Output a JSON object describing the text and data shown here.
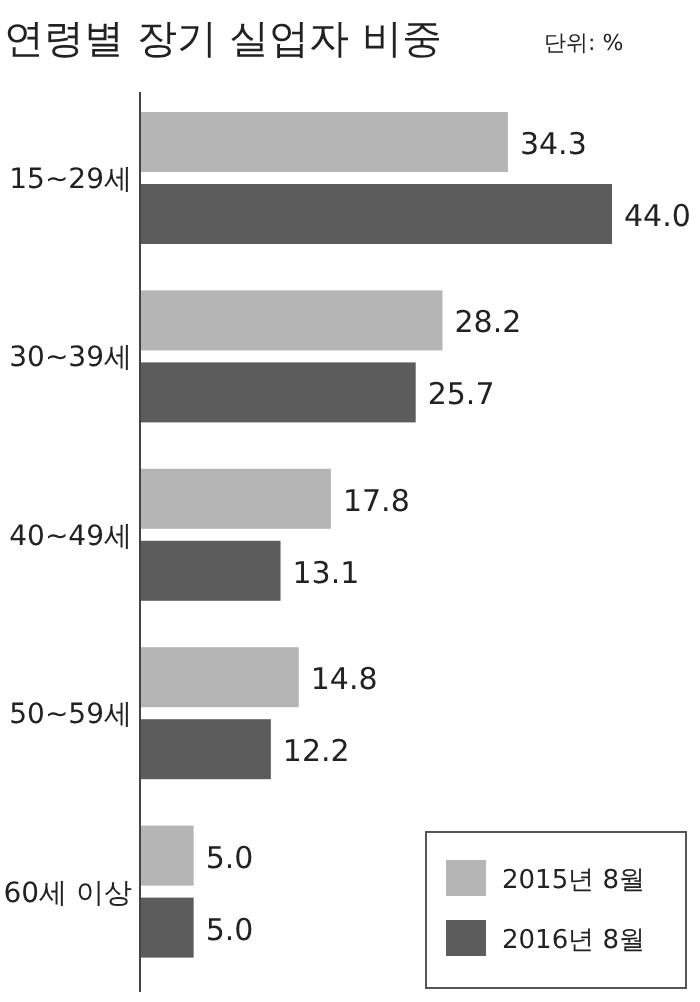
{
  "chart_data": {
    "type": "bar",
    "orientation": "horizontal",
    "title": "연령별 장기 실업자 비중",
    "subtitle": "단위: %",
    "categories": [
      "15~29세",
      "30~39세",
      "40~49세",
      "50~59세",
      "60세 이상"
    ],
    "series": [
      {
        "name": "2015년 8월",
        "color": "#b5b5b5",
        "values": [
          34.3,
          28.2,
          17.8,
          14.8,
          5.0
        ],
        "value_labels": [
          "34.3",
          "28.2",
          "17.8",
          "14.8",
          "5.0"
        ]
      },
      {
        "name": "2016년 8월",
        "color": "#5c5c5c",
        "values": [
          44.0,
          25.7,
          13.1,
          12.2,
          5.0
        ],
        "value_labels": [
          "44.0",
          "25.7",
          "13.1",
          "12.2",
          "5.0"
        ]
      }
    ],
    "legend": "bottom right"
  }
}
